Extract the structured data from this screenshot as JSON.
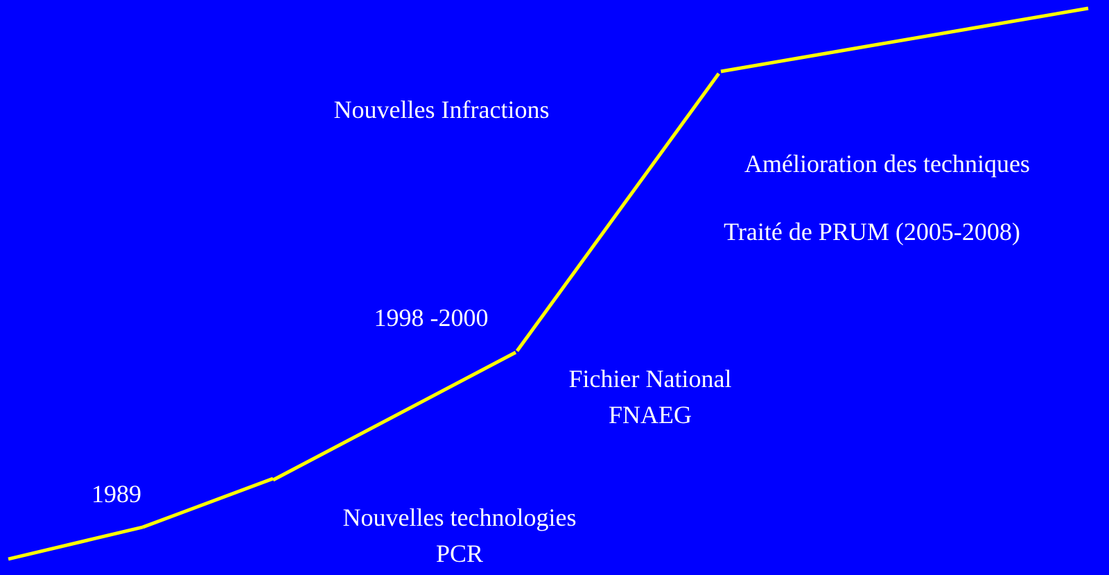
{
  "labels": {
    "nouvelles_infractions": "Nouvelles Infractions",
    "amelioration": "Amélioration des techniques",
    "prum": "Traité de PRUM (2005-2008)",
    "period_1998": "1998 -2000",
    "fichier_line1": "Fichier National",
    "fichier_line2": "FNAEG",
    "year_1989": "1989",
    "technologies_line1": "Nouvelles technologies",
    "technologies_line2": "PCR"
  }
}
